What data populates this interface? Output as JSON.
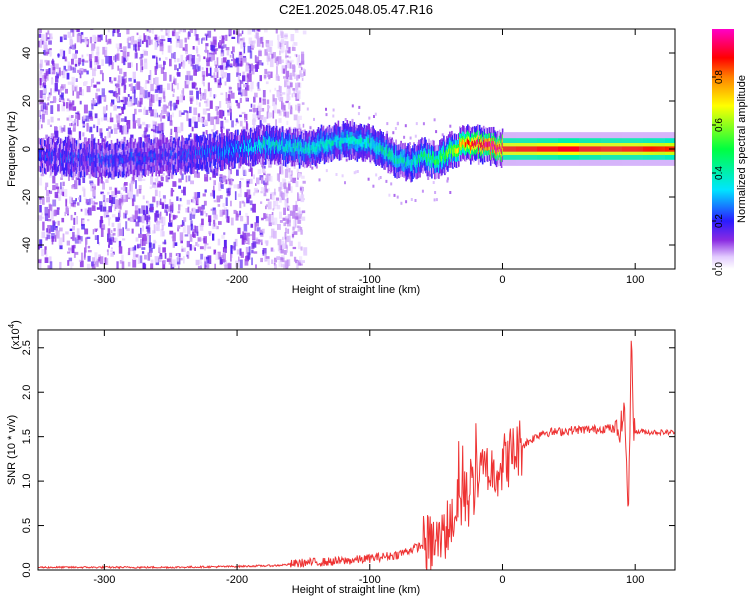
{
  "title": "C2E1.2025.048.05.47.R16",
  "chart_data": [
    {
      "type": "heatmap",
      "xlabel": "Height of straight line (km)",
      "ylabel": "Frequency (Hz)",
      "xlim": [
        -350,
        130
      ],
      "ylim": [
        -50,
        50
      ],
      "xticks": [
        -300,
        -200,
        -100,
        0,
        100
      ],
      "yticks": [
        -40,
        -20,
        0,
        20,
        40
      ],
      "colorbar": {
        "label": "Normalized spectral amplitude",
        "range": [
          0.0,
          1.0
        ],
        "ticks": [
          "0.0",
          "0.2",
          "0.4",
          "0.6",
          "0.8"
        ],
        "colormap": [
          "#ffffff",
          "#d6b4ff",
          "#8a2be2",
          "#3b1cff",
          "#00e5ff",
          "#00ff40",
          "#ffff00",
          "#ff8000",
          "#ff0000",
          "#ff00c8"
        ]
      },
      "spectral_ridge": {
        "x": [
          -350,
          -300,
          -250,
          -200,
          -180,
          -150,
          -120,
          -100,
          -80,
          -70,
          -60,
          -50,
          -40,
          -30,
          -20,
          -10,
          0,
          50,
          90,
          100,
          130
        ],
        "y": [
          -3,
          -4,
          -3,
          0,
          2,
          0,
          4,
          2,
          -4,
          -6,
          -3,
          -5,
          -1,
          2,
          2,
          1,
          0,
          0,
          0,
          0,
          0
        ],
        "peak_amplitude": [
          0.1,
          0.12,
          0.1,
          0.2,
          0.28,
          0.3,
          0.3,
          0.3,
          0.35,
          0.3,
          0.4,
          0.4,
          0.5,
          0.7,
          0.85,
          0.9,
          0.9,
          0.9,
          0.9,
          0.9,
          0.85
        ]
      }
    },
    {
      "type": "line",
      "xlabel": "Height of straight line (km)",
      "ylabel": "SNR (10 * v/v)",
      "scale_label": "(x10",
      "scale_exponent": "4",
      "xlim": [
        -350,
        130
      ],
      "ylim": [
        0,
        2.7
      ],
      "xticks": [
        -300,
        -200,
        -100,
        0,
        100
      ],
      "yticks": [
        "0.0",
        "0.5",
        "1.0",
        "1.5",
        "2.0",
        "2.5"
      ],
      "series": [
        {
          "color": "#ee3333",
          "x": [
            -350,
            -250,
            -200,
            -170,
            -150,
            -120,
            -100,
            -80,
            -60,
            -50,
            -45,
            -40,
            -35,
            -30,
            -25,
            -20,
            -15,
            -10,
            -5,
            0,
            10,
            20,
            30,
            40,
            50,
            60,
            70,
            80,
            88,
            92,
            95,
            97,
            99,
            100,
            105,
            110,
            120,
            130
          ],
          "y": [
            0.03,
            0.03,
            0.04,
            0.05,
            0.08,
            0.1,
            0.13,
            0.17,
            0.28,
            0.3,
            0.35,
            0.55,
            0.65,
            0.8,
            0.8,
            1.0,
            1.1,
            1.1,
            1.15,
            1.2,
            1.35,
            1.45,
            1.55,
            1.55,
            1.57,
            1.58,
            1.58,
            1.6,
            1.55,
            1.8,
            0.6,
            2.65,
            1.6,
            1.55,
            1.56,
            1.55,
            1.55,
            1.55
          ],
          "spikes": [
            [
              -45,
              0.45
            ],
            [
              -38,
              0.8
            ],
            [
              -33,
              1.45
            ],
            [
              -30,
              1.4
            ],
            [
              -27,
              1.1
            ],
            [
              -24,
              1.25
            ],
            [
              -20,
              1.65
            ],
            [
              -17,
              1.2
            ],
            [
              -12,
              1.3
            ],
            [
              -7,
              1.2
            ],
            [
              -2,
              1.1
            ]
          ]
        }
      ]
    }
  ]
}
